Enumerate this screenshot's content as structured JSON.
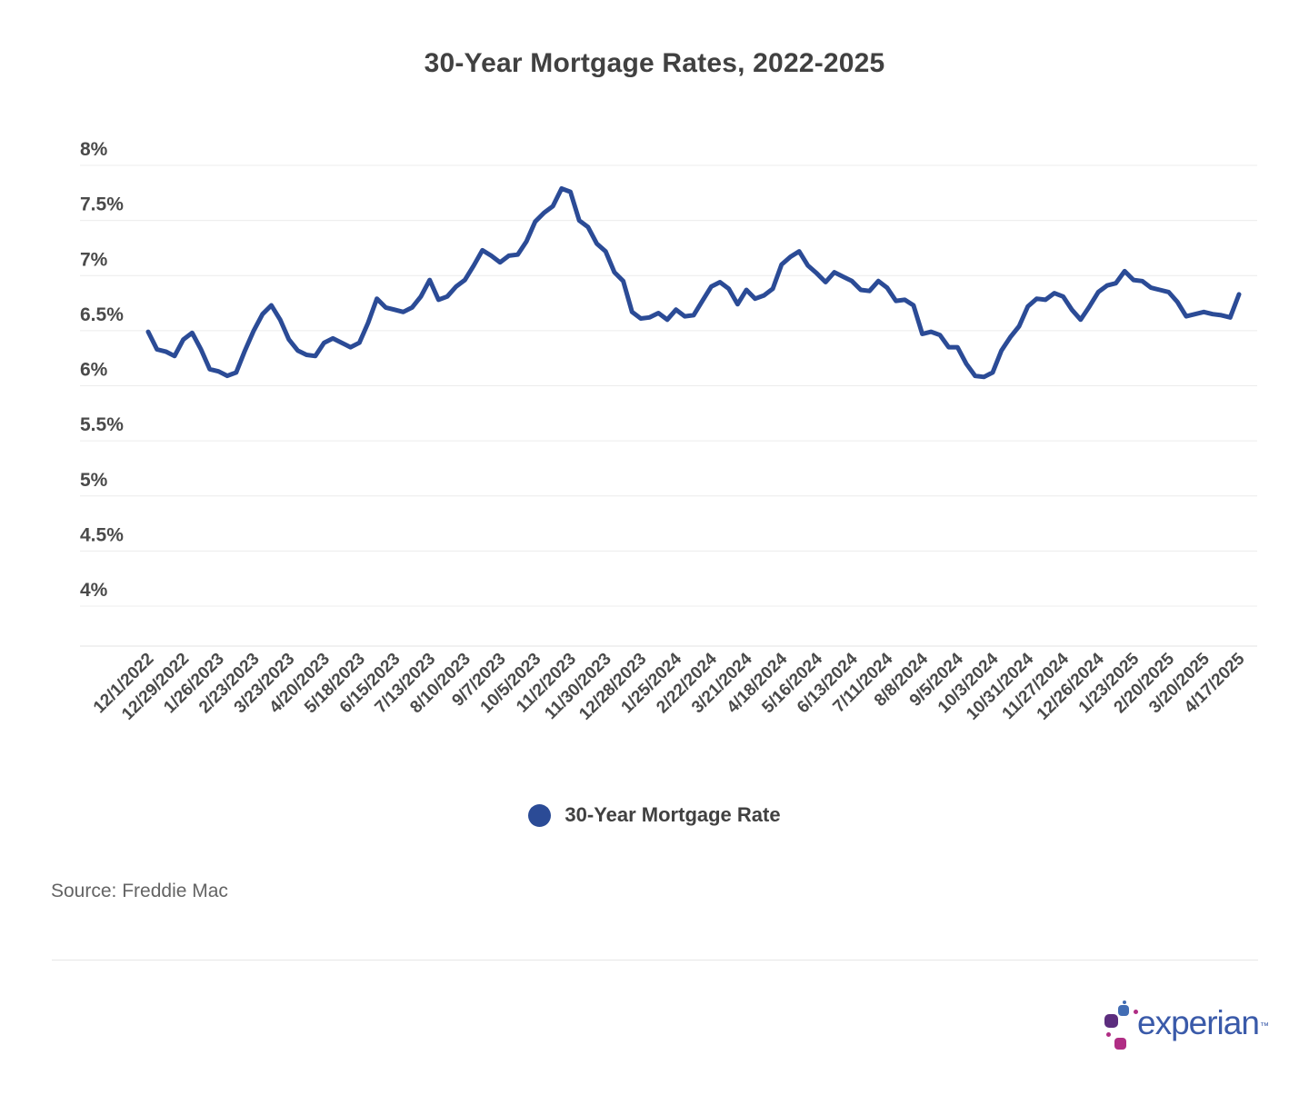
{
  "title": "30-Year Mortgage Rates, 2022-2025",
  "legend": {
    "label": "30-Year Mortgage Rate",
    "marker_color": "#2b4b96"
  },
  "source": "Source: Freddie Mac",
  "brand": {
    "wordmark": "experian",
    "trademark": "™",
    "wordmark_color": "#3a5aa9"
  },
  "chart_data": {
    "type": "line",
    "title": "30-Year Mortgage Rates, 2022-2025",
    "ylabel": "",
    "xlabel": "",
    "ylim": [
      4,
      8
    ],
    "grid": "horizontal",
    "legend_position": "bottom",
    "y_ticks": [
      "8%",
      "7.5%",
      "7%",
      "6.5%",
      "6%",
      "5.5%",
      "5%",
      "4.5%",
      "4%"
    ],
    "x_tick_every": 4,
    "x_tick_labels": [
      "12/1/2022",
      "12/29/2022",
      "1/26/2023",
      "2/23/2023",
      "3/23/2023",
      "4/20/2023",
      "5/18/2023",
      "6/15/2023",
      "7/13/2023",
      "8/10/2023",
      "9/7/2023",
      "10/5/2023",
      "11/2/2023",
      "11/30/2023",
      "12/28/2023",
      "1/25/2024",
      "2/22/2024",
      "3/21/2024",
      "4/18/2024",
      "5/16/2024",
      "6/13/2024",
      "7/11/2024",
      "8/8/2024",
      "9/5/2024",
      "10/3/2024",
      "10/31/2024",
      "11/27/2024",
      "12/26/2024",
      "1/23/2025",
      "2/20/2025",
      "3/20/2025",
      "4/17/2025"
    ],
    "series": [
      {
        "name": "30-Year Mortgage Rate",
        "color": "#2b4b96",
        "x": [
          "12/1/2022",
          "12/8/2022",
          "12/15/2022",
          "12/22/2022",
          "12/29/2022",
          "1/5/2023",
          "1/12/2023",
          "1/19/2023",
          "1/26/2023",
          "2/2/2023",
          "2/9/2023",
          "2/16/2023",
          "2/23/2023",
          "3/2/2023",
          "3/9/2023",
          "3/16/2023",
          "3/23/2023",
          "3/30/2023",
          "4/6/2023",
          "4/13/2023",
          "4/20/2023",
          "4/27/2023",
          "5/4/2023",
          "5/11/2023",
          "5/18/2023",
          "5/25/2023",
          "6/1/2023",
          "6/8/2023",
          "6/15/2023",
          "6/22/2023",
          "6/29/2023",
          "7/6/2023",
          "7/13/2023",
          "7/20/2023",
          "7/27/2023",
          "8/3/2023",
          "8/10/2023",
          "8/17/2023",
          "8/24/2023",
          "8/31/2023",
          "9/7/2023",
          "9/14/2023",
          "9/21/2023",
          "9/28/2023",
          "10/5/2023",
          "10/12/2023",
          "10/19/2023",
          "10/26/2023",
          "11/2/2023",
          "11/9/2023",
          "11/16/2023",
          "11/22/2023",
          "11/30/2023",
          "12/7/2023",
          "12/14/2023",
          "12/21/2023",
          "12/28/2023",
          "1/4/2024",
          "1/11/2024",
          "1/18/2024",
          "1/25/2024",
          "2/1/2024",
          "2/8/2024",
          "2/15/2024",
          "2/22/2024",
          "2/29/2024",
          "3/7/2024",
          "3/14/2024",
          "3/21/2024",
          "3/28/2024",
          "4/4/2024",
          "4/11/2024",
          "4/18/2024",
          "4/25/2024",
          "5/2/2024",
          "5/9/2024",
          "5/16/2024",
          "5/23/2024",
          "5/30/2024",
          "6/6/2024",
          "6/13/2024",
          "6/20/2024",
          "6/27/2024",
          "7/3/2024",
          "7/11/2024",
          "7/18/2024",
          "7/25/2024",
          "8/1/2024",
          "8/8/2024",
          "8/15/2024",
          "8/22/2024",
          "8/29/2024",
          "9/5/2024",
          "9/12/2024",
          "9/19/2024",
          "9/26/2024",
          "10/3/2024",
          "10/10/2024",
          "10/17/2024",
          "10/24/2024",
          "10/31/2024",
          "11/7/2024",
          "11/14/2024",
          "11/21/2024",
          "11/27/2024",
          "12/5/2024",
          "12/12/2024",
          "12/19/2024",
          "12/26/2024",
          "1/2/2025",
          "1/9/2025",
          "1/16/2025",
          "1/23/2025",
          "1/30/2025",
          "2/6/2025",
          "2/13/2025",
          "2/20/2025",
          "2/27/2025",
          "3/6/2025",
          "3/13/2025",
          "3/20/2025",
          "3/27/2025",
          "4/3/2025",
          "4/10/2025",
          "4/17/2025"
        ],
        "values": [
          6.49,
          6.33,
          6.31,
          6.27,
          6.42,
          6.48,
          6.33,
          6.15,
          6.13,
          6.09,
          6.12,
          6.32,
          6.5,
          6.65,
          6.73,
          6.6,
          6.42,
          6.32,
          6.28,
          6.27,
          6.39,
          6.43,
          6.39,
          6.35,
          6.39,
          6.57,
          6.79,
          6.71,
          6.69,
          6.67,
          6.71,
          6.81,
          6.96,
          6.78,
          6.81,
          6.9,
          6.96,
          7.09,
          7.23,
          7.18,
          7.12,
          7.18,
          7.19,
          7.31,
          7.49,
          7.57,
          7.63,
          7.79,
          7.76,
          7.5,
          7.44,
          7.29,
          7.22,
          7.03,
          6.95,
          6.67,
          6.61,
          6.62,
          6.66,
          6.6,
          6.69,
          6.63,
          6.64,
          6.77,
          6.9,
          6.94,
          6.88,
          6.74,
          6.87,
          6.79,
          6.82,
          6.88,
          7.1,
          7.17,
          7.22,
          7.09,
          7.02,
          6.94,
          7.03,
          6.99,
          6.95,
          6.87,
          6.86,
          6.95,
          6.89,
          6.77,
          6.78,
          6.73,
          6.47,
          6.49,
          6.46,
          6.35,
          6.35,
          6.2,
          6.09,
          6.08,
          6.12,
          6.32,
          6.44,
          6.54,
          6.72,
          6.79,
          6.78,
          6.84,
          6.81,
          6.69,
          6.6,
          6.72,
          6.85,
          6.91,
          6.93,
          7.04,
          6.96,
          6.95,
          6.89,
          6.87,
          6.85,
          6.76,
          6.63,
          6.65,
          6.67,
          6.65,
          6.64,
          6.62,
          6.83
        ]
      }
    ],
    "style": {
      "grid_color": "#ececec",
      "axis_label_color": "#4a4a4a"
    }
  }
}
